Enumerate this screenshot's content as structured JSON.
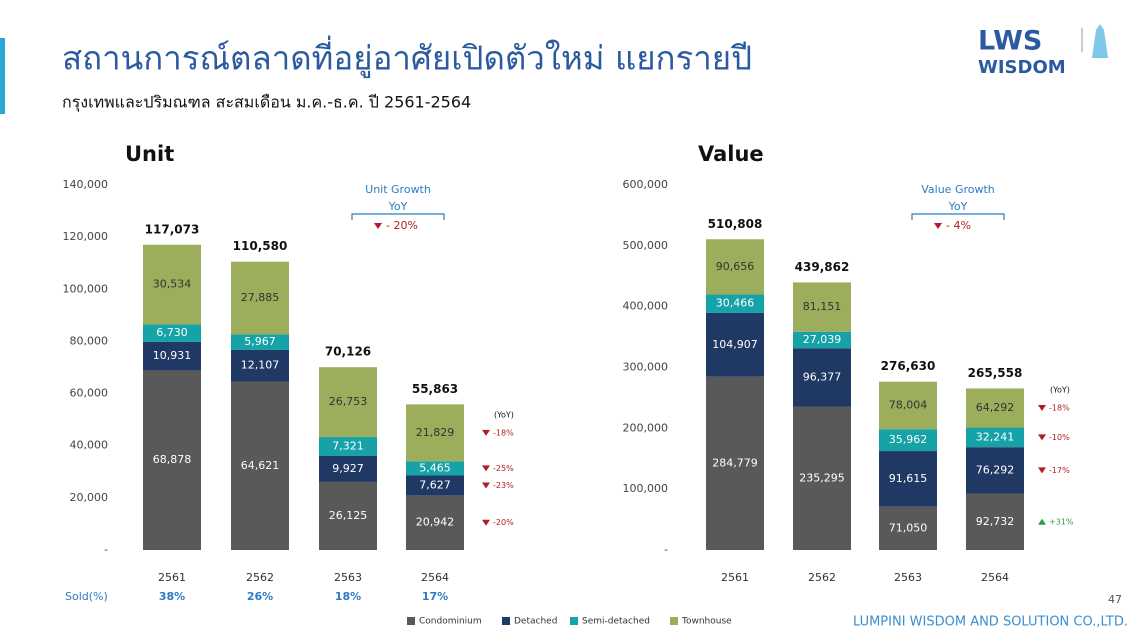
{
  "header": {
    "title": "สถานการณ์ตลาดที่อยู่อาศัยเปิดตัวใหม่ แยกรายปี",
    "subtitle": "กรุงเทพและปริมณฑล สะสมเดือน ม.ค.-ธ.ค. ปี 2561-2564"
  },
  "logo": {
    "top": "LWS",
    "bottom": "WISDOM"
  },
  "footer": "LUMPINI WISDOM AND SOLUTION CO.,LTD.",
  "page_number": "47",
  "chart_data": [
    {
      "type": "stacked-bar",
      "title": "Unit",
      "categories": [
        "2561",
        "2562",
        "2563",
        "2564"
      ],
      "series": [
        {
          "name": "Condominium",
          "color": "#595959",
          "label_color": "#ffffff",
          "values": [
            68878,
            64621,
            26125,
            20942
          ],
          "value_labels": [
            "68,878",
            "64,621",
            "26,125",
            "20,942"
          ]
        },
        {
          "name": "Detached",
          "color": "#1f3864",
          "label_color": "#ffffff",
          "values": [
            10931,
            12107,
            9927,
            7627
          ],
          "value_labels": [
            "10,931",
            "12,107",
            "9,927",
            "7,627"
          ]
        },
        {
          "name": "Semi-detached",
          "color": "#17a2a8",
          "label_color": "#ffffff",
          "values": [
            6730,
            5967,
            7321,
            5465
          ],
          "value_labels": [
            "6,730",
            "5,967",
            "7,321",
            "5,465"
          ]
        },
        {
          "name": "Townhouse",
          "color": "#9cae5c",
          "label_color": "#333333",
          "values": [
            30534,
            27885,
            26753,
            21829
          ],
          "value_labels": [
            "30,534",
            "27,885",
            "26,753",
            "21,829"
          ]
        }
      ],
      "totals": {
        "values": [
          117073,
          110580,
          70126,
          55863
        ],
        "value_labels": [
          "117,073",
          "110,580",
          "70,126",
          "55,863"
        ]
      },
      "ylim": [
        0,
        140000
      ],
      "yticks": [
        {
          "value": 0,
          "label": "-"
        },
        {
          "value": 20000,
          "label": "20,000"
        },
        {
          "value": 40000,
          "label": "40,000"
        },
        {
          "value": 60000,
          "label": "60,000"
        },
        {
          "value": 80000,
          "label": "80,000"
        },
        {
          "value": 100000,
          "label": "100,000"
        },
        {
          "value": 120000,
          "label": "120,000"
        },
        {
          "value": 140000,
          "label": "140,000"
        }
      ],
      "growth": {
        "title": "Unit Growth",
        "period": "YoY",
        "value": {
          "value": -20,
          "label": "- 20%"
        }
      },
      "yoy": {
        "title": "(YoY)",
        "values": [
          -20,
          -23,
          -25,
          -18
        ],
        "value_labels": [
          "-20%",
          "-23%",
          "-25%",
          "-18%"
        ]
      },
      "sold": {
        "label": "Sold(%)",
        "values": [
          38,
          26,
          18,
          17
        ],
        "value_labels": [
          "38%",
          "26%",
          "18%",
          "17%"
        ]
      }
    },
    {
      "type": "stacked-bar",
      "title": "Value",
      "categories": [
        "2561",
        "2562",
        "2563",
        "2564"
      ],
      "series": [
        {
          "name": "Condominium",
          "color": "#595959",
          "label_color": "#ffffff",
          "values": [
            284779,
            235295,
            71050,
            92732
          ],
          "value_labels": [
            "284,779",
            "235,295",
            "71,050",
            "92,732"
          ]
        },
        {
          "name": "Detached",
          "color": "#1f3864",
          "label_color": "#ffffff",
          "values": [
            104907,
            96377,
            91615,
            76292
          ],
          "value_labels": [
            "104,907",
            "96,377",
            "91,615",
            "76,292"
          ]
        },
        {
          "name": "Semi-detached",
          "color": "#17a2a8",
          "label_color": "#ffffff",
          "values": [
            30466,
            27039,
            35962,
            32241
          ],
          "value_labels": [
            "30,466",
            "27,039",
            "35,962",
            "32,241"
          ]
        },
        {
          "name": "Townhouse",
          "color": "#9cae5c",
          "label_color": "#333333",
          "values": [
            90656,
            81151,
            78004,
            64292
          ],
          "value_labels": [
            "90,656",
            "81,151",
            "78,004",
            "64,292"
          ]
        }
      ],
      "totals": {
        "values": [
          510808,
          439862,
          276630,
          265558
        ],
        "value_labels": [
          "510,808",
          "439,862",
          "276,630",
          "265,558"
        ]
      },
      "ylim": [
        0,
        600000
      ],
      "yticks": [
        {
          "value": 0,
          "label": "-"
        },
        {
          "value": 100000,
          "label": "100,000"
        },
        {
          "value": 200000,
          "label": "200,000"
        },
        {
          "value": 300000,
          "label": "300,000"
        },
        {
          "value": 400000,
          "label": "400,000"
        },
        {
          "value": 500000,
          "label": "500,000"
        },
        {
          "value": 600000,
          "label": "600,000"
        }
      ],
      "growth": {
        "title": "Value Growth",
        "period": "YoY",
        "value": {
          "value": -4,
          "label": "- 4%"
        }
      },
      "yoy": {
        "title": "(YoY)",
        "values": [
          31,
          -17,
          -10,
          -18
        ],
        "value_labels": [
          "+31%",
          "-17%",
          "-10%",
          "-18%"
        ]
      }
    }
  ]
}
